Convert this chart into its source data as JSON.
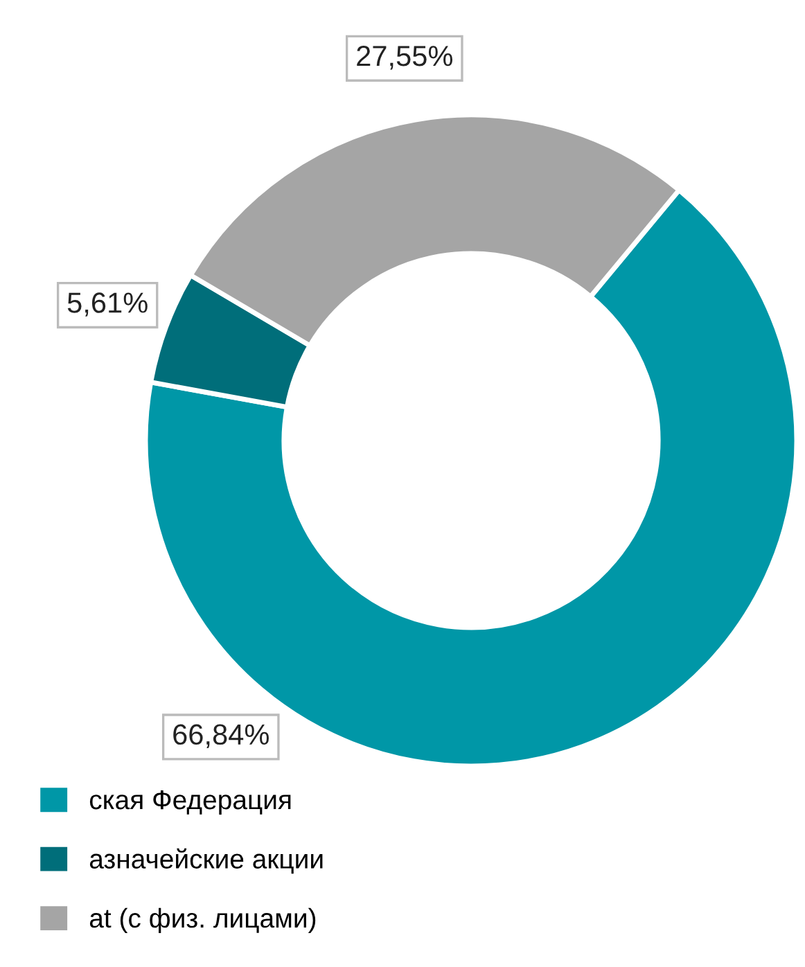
{
  "chart_data": {
    "type": "donut",
    "categories": [
      "ская Федерация",
      "азначейские акции",
      "at (с физ. лицами)"
    ],
    "values": [
      66.84,
      5.61,
      27.55
    ],
    "colors": [
      "#0097a7",
      "#006e7a",
      "#a5a5a5"
    ],
    "value_labels": [
      "66,84%",
      "5,61%",
      "27,55%"
    ],
    "legend": "bottom left"
  }
}
